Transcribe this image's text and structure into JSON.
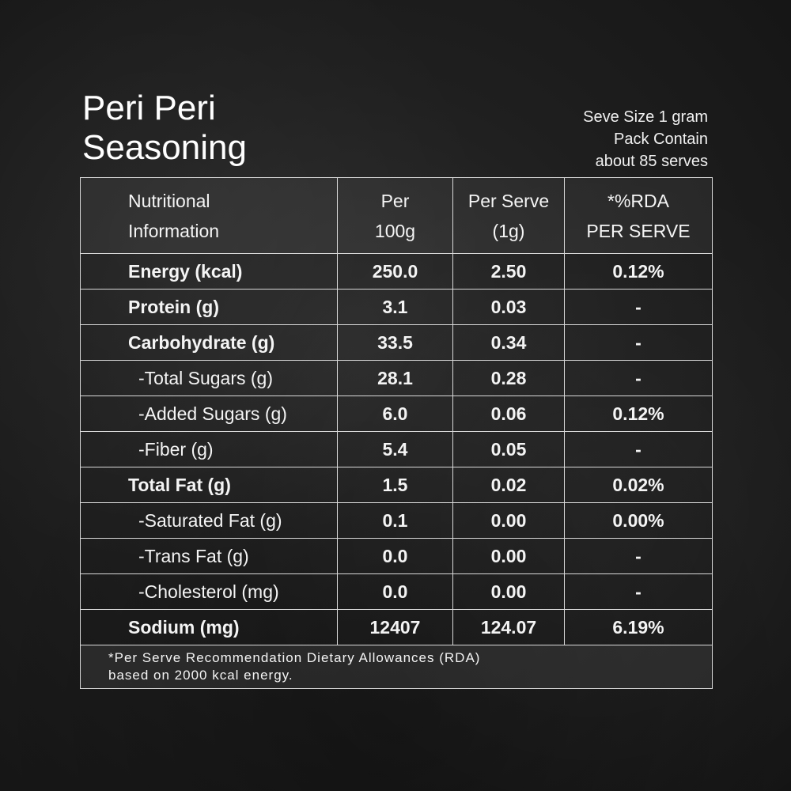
{
  "title": {
    "line1": "Peri Peri",
    "line2": "Seasoning"
  },
  "serve_info": {
    "line1": "Seve Size 1 gram",
    "line2": "Pack Contain",
    "line3": "about 85  serves"
  },
  "table": {
    "headers": [
      {
        "line1": "Nutritional",
        "line2": "Information"
      },
      {
        "line1": "Per",
        "line2": "100g"
      },
      {
        "line1": "Per Serve",
        "line2": "(1g)"
      },
      {
        "line1": "*%RDA",
        "line2": "PER SERVE"
      }
    ],
    "rows": [
      {
        "name": "Energy (kcal)",
        "per100": "250.0",
        "perServe": "2.50",
        "rda": "0.12%"
      },
      {
        "name": "Protein (g)",
        "per100": "3.1",
        "perServe": "0.03",
        "rda": "-"
      },
      {
        "name": "Carbohydrate (g)",
        "per100": "33.5",
        "perServe": "0.34",
        "rda": "-"
      },
      {
        "name": "-Total Sugars (g)",
        "per100": "28.1",
        "perServe": "0.28",
        "rda": "-"
      },
      {
        "name": "-Added Sugars (g)",
        "per100": "6.0",
        "perServe": "0.06",
        "rda": "0.12%"
      },
      {
        "name": "-Fiber (g)",
        "per100": "5.4",
        "perServe": "0.05",
        "rda": "-"
      },
      {
        "name": "Total Fat (g)",
        "per100": "1.5",
        "perServe": "0.02",
        "rda": "0.02%"
      },
      {
        "name": "-Saturated Fat (g)",
        "per100": "0.1",
        "perServe": "0.00",
        "rda": "0.00%"
      },
      {
        "name": "-Trans Fat (g)",
        "per100": "0.0",
        "perServe": "0.00",
        "rda": "-"
      },
      {
        "name": "-Cholesterol (mg)",
        "per100": "0.0",
        "perServe": "0.00",
        "rda": "-"
      },
      {
        "name": "Sodium (mg)",
        "per100": "12407",
        "perServe": "124.07",
        "rda": "6.19%"
      }
    ],
    "footnote": {
      "line1": "*Per Serve Recommendation Dietary Allowances (RDA)",
      "line2": "based on 2000 kcal energy."
    }
  }
}
